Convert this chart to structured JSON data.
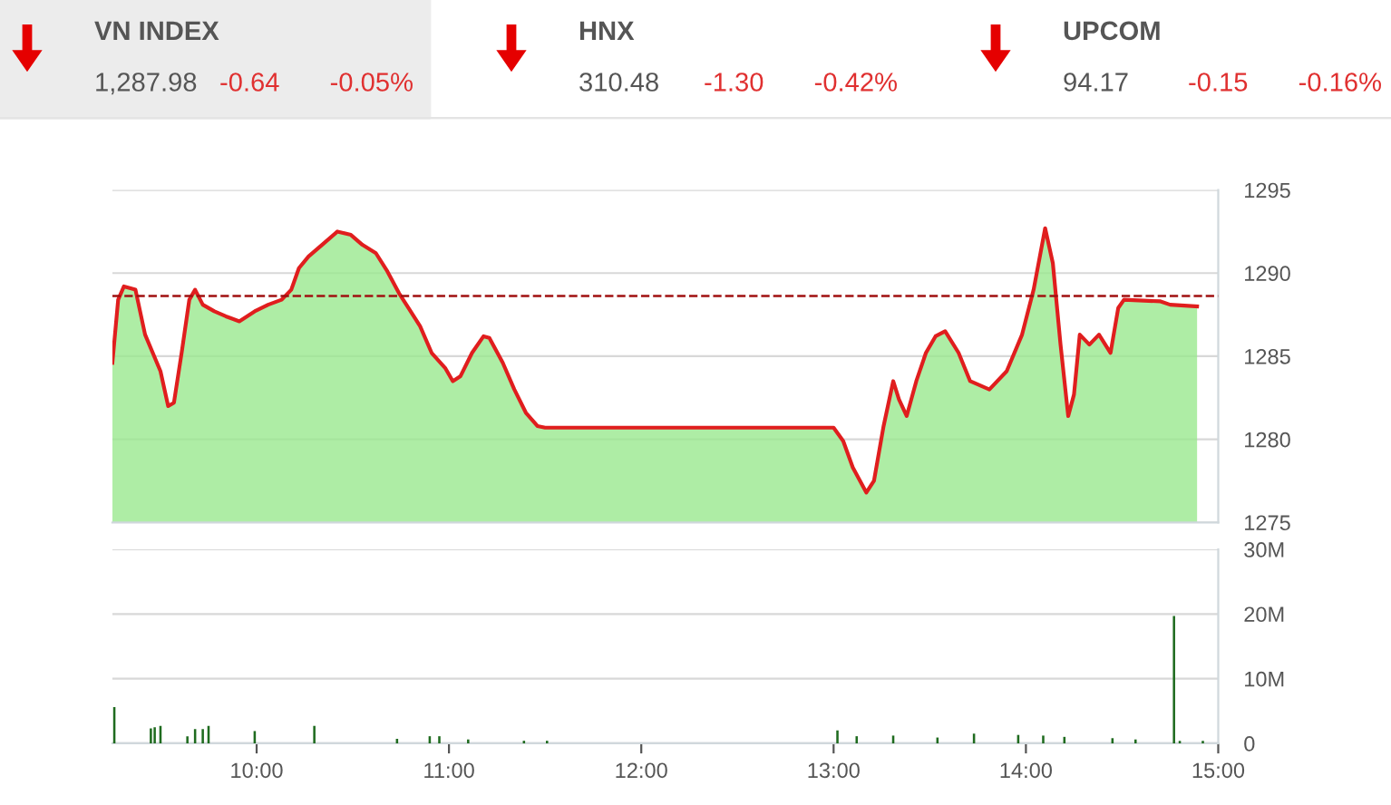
{
  "chart_data": [
    {
      "type": "other",
      "annotations": [
        "VN INDEX",
        "1,287.98",
        "-0.64",
        "-0.05%",
        "HNX",
        "310.48",
        "-1.30",
        "-0.42%",
        "UPCOM",
        "94.17",
        "-0.15",
        "-0.16%"
      ]
    },
    {
      "type": "area",
      "x": [
        9.25,
        9.28,
        9.31,
        9.37,
        9.42,
        9.5,
        9.54,
        9.57,
        9.61,
        9.65,
        9.68,
        9.72,
        9.78,
        9.84,
        9.91,
        9.99,
        10.06,
        10.13,
        10.18,
        10.22,
        10.27,
        10.34,
        10.42,
        10.49,
        10.55,
        10.62,
        10.68,
        10.74,
        10.79,
        10.85,
        10.91,
        10.98,
        11.02,
        11.06,
        11.12,
        11.18,
        11.21,
        11.28,
        11.34,
        11.4,
        11.46,
        11.5,
        13.0,
        13.05,
        13.1,
        13.17,
        13.21,
        13.26,
        13.31,
        13.34,
        13.38,
        13.43,
        13.48,
        13.53,
        13.58,
        13.65,
        13.71,
        13.81,
        13.9,
        13.98,
        14.04,
        14.1,
        14.14,
        14.18,
        14.22,
        14.25,
        14.28,
        14.33,
        14.38,
        14.44,
        14.48,
        14.51,
        14.7,
        14.75,
        14.89
      ],
      "series": [
        {
          "type": "area",
          "color": "#9ae88f",
          "values": [
            1284.6,
            1288.4,
            1289.2,
            1289.0,
            1286.3,
            1284.1,
            1282.0,
            1282.2,
            1285.2,
            1288.4,
            1289.0,
            1288.1,
            1287.7,
            1287.4,
            1287.1,
            1287.7,
            1288.1,
            1288.4,
            1289.0,
            1290.3,
            1291.0,
            1291.7,
            1292.5,
            1292.3,
            1291.7,
            1291.2,
            1290.1,
            1288.8,
            1287.9,
            1286.8,
            1285.2,
            1284.3,
            1283.5,
            1283.8,
            1285.2,
            1286.2,
            1286.1,
            1284.6,
            1283.0,
            1281.6,
            1280.8,
            1280.7,
            1280.7,
            1279.9,
            1278.3,
            1276.8,
            1277.5,
            1280.8,
            1283.5,
            1282.4,
            1281.4,
            1283.5,
            1285.2,
            1286.2,
            1286.5,
            1285.2,
            1283.5,
            1283.0,
            1284.1,
            1286.3,
            1289.0,
            1292.7,
            1290.6,
            1285.7,
            1281.4,
            1282.7,
            1286.3,
            1285.7,
            1286.3,
            1285.2,
            1287.9,
            1288.4,
            1288.3,
            1288.1,
            1288.0
          ]
        },
        {
          "type": "line",
          "color": "#e01e1e",
          "values": [
            1284.6,
            1288.4,
            1289.2,
            1289.0,
            1286.3,
            1284.1,
            1282.0,
            1282.2,
            1285.2,
            1288.4,
            1289.0,
            1288.1,
            1287.7,
            1287.4,
            1287.1,
            1287.7,
            1288.1,
            1288.4,
            1289.0,
            1290.3,
            1291.0,
            1291.7,
            1292.5,
            1292.3,
            1291.7,
            1291.2,
            1290.1,
            1288.8,
            1287.9,
            1286.8,
            1285.2,
            1284.3,
            1283.5,
            1283.8,
            1285.2,
            1286.2,
            1286.1,
            1284.6,
            1283.0,
            1281.6,
            1280.8,
            1280.7,
            1280.7,
            1279.9,
            1278.3,
            1276.8,
            1277.5,
            1280.8,
            1283.5,
            1282.4,
            1281.4,
            1283.5,
            1285.2,
            1286.2,
            1286.5,
            1285.2,
            1283.5,
            1283.0,
            1284.1,
            1286.3,
            1289.0,
            1292.7,
            1290.6,
            1285.7,
            1281.4,
            1282.7,
            1286.3,
            1285.7,
            1286.3,
            1285.2,
            1287.9,
            1288.4,
            1288.3,
            1288.1,
            1288.0
          ]
        }
      ],
      "xlim": [
        9.25,
        15
      ],
      "ylim": [
        1275,
        1295
      ],
      "yticks": [
        1275,
        1280,
        1285,
        1290,
        1295
      ],
      "grid": "y",
      "tick_labels": "y",
      "ref_lines": [
        {
          "axis": "y",
          "value": 1288.62,
          "color": "#a01010",
          "line_style": "dashed"
        }
      ]
    },
    {
      "type": "bar",
      "x": [
        9.26,
        9.45,
        9.47,
        9.5,
        9.64,
        9.68,
        9.72,
        9.75,
        9.99,
        10.3,
        10.73,
        10.9,
        10.95,
        11.1,
        11.39,
        11.51,
        13.02,
        13.12,
        13.31,
        13.54,
        13.73,
        13.96,
        14.09,
        14.2,
        14.45,
        14.57,
        14.77,
        14.8,
        14.92
      ],
      "series": [
        {
          "color": "#1f6b1f",
          "values": [
            5600000,
            2300000,
            2500000,
            2700000,
            1100000,
            2200000,
            2200000,
            2700000,
            1900000,
            2700000,
            700000,
            1100000,
            1100000,
            600000,
            400000,
            400000,
            2000000,
            1100000,
            1200000,
            900000,
            1500000,
            1300000,
            1200000,
            1000000,
            800000,
            600000,
            19700000,
            400000,
            400000
          ]
        }
      ],
      "xlim": [
        9.25,
        15
      ],
      "xticks": [
        {
          "value": 10,
          "label": "10:00"
        },
        {
          "value": 11,
          "label": "11:00"
        },
        {
          "value": 12,
          "label": "12:00"
        },
        {
          "value": 13,
          "label": "13:00"
        },
        {
          "value": 14,
          "label": "14:00"
        },
        {
          "value": 15,
          "label": "15:00"
        }
      ],
      "ylim": [
        0,
        30000000
      ],
      "yticks": [
        0,
        {
          "value": 10000000,
          "label": "10M"
        },
        {
          "value": 20000000,
          "label": "20M"
        },
        {
          "value": 30000000,
          "label": "30M"
        }
      ],
      "grid": "y"
    }
  ]
}
